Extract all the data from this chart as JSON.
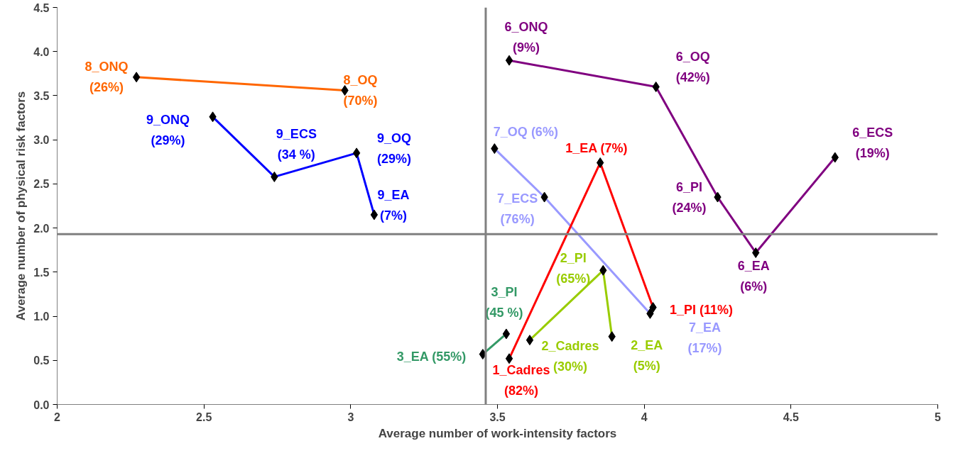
{
  "chart_data": {
    "type": "line",
    "xlabel": "Average number of work-intensity factors",
    "ylabel": "Average number of physical risk factors",
    "xlim": [
      2,
      5
    ],
    "ylim": [
      0,
      4.5
    ],
    "xticks": [
      2,
      2.5,
      3,
      3.5,
      4,
      4.5,
      5
    ],
    "yticks": [
      {
        "value": 0,
        "label": "0.0"
      },
      {
        "value": 0.5,
        "label": "0.5"
      },
      {
        "value": 1,
        "label": "1.0"
      },
      {
        "value": 1.5,
        "label": "1.5"
      },
      {
        "value": 2,
        "label": "2.0"
      },
      {
        "value": 2.5,
        "label": "2.5"
      },
      {
        "value": 3,
        "label": "3.0"
      },
      {
        "value": 3.5,
        "label": "3.5"
      },
      {
        "value": 4,
        "label": "4.0"
      },
      4.5
    ],
    "marker": "diamond",
    "grid": false,
    "series": [
      {
        "color": "#ff6600",
        "x": [
          2.27,
          2.98
        ],
        "values": [
          3.71,
          3.56
        ]
      },
      {
        "color": "#0000ff",
        "x": [
          2.53,
          2.74,
          3.02,
          3.08
        ],
        "values": [
          3.26,
          2.58,
          2.85,
          2.15
        ]
      },
      {
        "color": "#800080",
        "x": [
          3.54,
          4.04,
          4.25,
          4.38,
          4.65
        ],
        "values": [
          3.9,
          3.6,
          2.35,
          1.72,
          2.8
        ]
      },
      {
        "color": "#9999ff",
        "x": [
          3.49,
          3.66,
          4.02
        ],
        "values": [
          2.9,
          2.35,
          1.03
        ]
      },
      {
        "color": "#ff0000",
        "x": [
          3.54,
          3.85,
          4.03
        ],
        "values": [
          0.52,
          2.74,
          1.1
        ]
      },
      {
        "color": "#99cc00",
        "x": [
          3.61,
          3.86,
          3.89
        ],
        "values": [
          0.73,
          1.52,
          0.77
        ]
      },
      {
        "color": "#339966",
        "x": [
          3.45,
          3.53
        ],
        "values": [
          0.57,
          0.8
        ]
      }
    ],
    "annotations": [
      {
        "text": "8_ONQ\n(26%)",
        "x": 2.27,
        "y": 3.71
      },
      {
        "text": "8_OQ\n(70%)",
        "x": 2.98,
        "y": 3.56
      },
      {
        "text": "9_ONQ\n(29%)",
        "x": 2.53,
        "y": 3.26
      },
      {
        "text": "9_ECS\n(34 %)",
        "x": 2.74,
        "y": 2.58
      },
      {
        "text": "9_OQ\n(29%)",
        "x": 3.02,
        "y": 2.85
      },
      {
        "text": "9_EA\n(7%)",
        "x": 3.08,
        "y": 2.15
      },
      {
        "text": "6_ONQ\n(9%)",
        "x": 3.54,
        "y": 3.9
      },
      {
        "text": "6_OQ\n(42%)",
        "x": 4.04,
        "y": 3.6
      },
      {
        "text": "6_PI\n(24%)",
        "x": 4.25,
        "y": 2.35
      },
      {
        "text": "6_EA\n(6%)",
        "x": 4.38,
        "y": 1.72
      },
      {
        "text": "6_ECS\n(19%)",
        "x": 4.65,
        "y": 2.8
      },
      {
        "text": "7_OQ (6%)",
        "x": 3.49,
        "y": 2.9
      },
      {
        "text": "7_ECS\n(76%)",
        "x": 3.66,
        "y": 2.35
      },
      {
        "text": "7_EA\n(17%)",
        "x": 4.02,
        "y": 1.03
      },
      {
        "text": "1_Cadres\n(82%)",
        "x": 3.54,
        "y": 0.52
      },
      {
        "text": "1_EA (7%)",
        "x": 3.85,
        "y": 2.74
      },
      {
        "text": "1_PI (11%)",
        "x": 4.03,
        "y": 1.1
      },
      {
        "text": "2_Cadres\n(30%)",
        "x": 3.61,
        "y": 0.73
      },
      {
        "text": "2_PI\n(65%)",
        "x": 3.86,
        "y": 1.52
      },
      {
        "text": "2_EA\n(5%)",
        "x": 3.89,
        "y": 0.77
      },
      {
        "text": "3_EA (55%)",
        "x": 3.45,
        "y": 0.57
      },
      {
        "text": "3_PI\n(45 %)",
        "x": 3.53,
        "y": 0.8
      }
    ],
    "ref_lines": [
      {
        "axis": "x",
        "value": 3.46,
        "color": "#808080"
      },
      {
        "axis": "y",
        "value": 1.93,
        "color": "#808080"
      }
    ]
  }
}
